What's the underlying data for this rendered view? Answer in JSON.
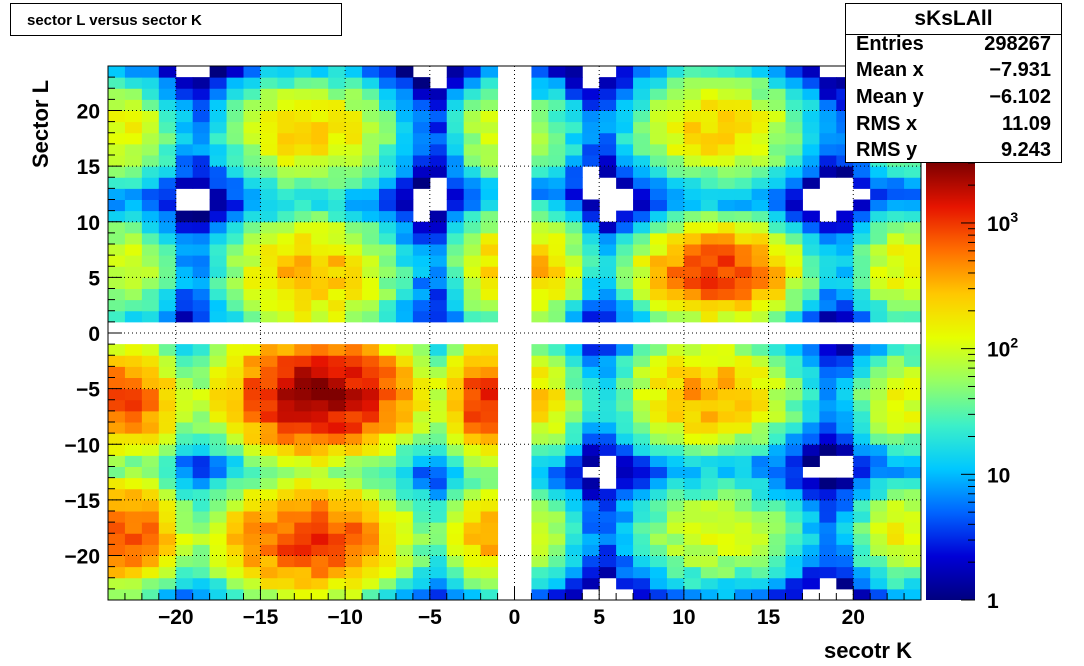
{
  "title": "sector L versus sector K",
  "stats": {
    "name": "sKsLAll",
    "rows": [
      {
        "label": "Entries",
        "value": "298267"
      },
      {
        "label": "Mean x",
        "value": "−7.931"
      },
      {
        "label": "Mean y",
        "value": "−6.102"
      },
      {
        "label": "RMS x",
        "value": "11.09"
      },
      {
        "label": "RMS y",
        "value": "9.243"
      }
    ]
  },
  "chart_data": {
    "type": "heatmap",
    "title": "sector L versus sector K",
    "xlabel": "secotr K",
    "ylabel": "Sector L",
    "xlim": [
      -24,
      24
    ],
    "ylim": [
      -24,
      24
    ],
    "grid": true,
    "bin_width": 1,
    "x_ticks": [
      {
        "value": -20,
        "label": "−20"
      },
      {
        "value": -15,
        "label": "−15"
      },
      {
        "value": -10,
        "label": "−10"
      },
      {
        "value": -5,
        "label": "−5"
      },
      {
        "value": 0,
        "label": "0"
      },
      {
        "value": 5,
        "label": "5"
      },
      {
        "value": 10,
        "label": "10"
      },
      {
        "value": 15,
        "label": "15"
      },
      {
        "value": 20,
        "label": "20"
      }
    ],
    "y_ticks": [
      {
        "value": 20,
        "label": "20"
      },
      {
        "value": 15,
        "label": "15"
      },
      {
        "value": 10,
        "label": "10"
      },
      {
        "value": 5,
        "label": "5"
      },
      {
        "value": 0,
        "label": "0"
      },
      {
        "value": -5,
        "label": "−5"
      },
      {
        "value": -10,
        "label": "−10"
      },
      {
        "value": -15,
        "label": "−15"
      },
      {
        "value": -20,
        "label": "−20"
      }
    ],
    "z_scale": "log",
    "zlim": [
      1,
      3000
    ],
    "z_ticks": [
      {
        "value": 1,
        "label": "1"
      },
      {
        "value": 10,
        "label": "10"
      },
      {
        "value": 100,
        "label": "10",
        "exp": "2"
      },
      {
        "value": 1000,
        "label": "10",
        "exp": "3"
      }
    ],
    "palette": [
      "#00007f",
      "#0000d6",
      "#0064ff",
      "#00c8ff",
      "#3cf0c8",
      "#96ff64",
      "#e6ff00",
      "#ffc800",
      "#ff6e00",
      "#e61400",
      "#7f0000"
    ],
    "clusters": [
      {
        "x": -12,
        "y": 18,
        "peak": 250,
        "sx": 2.4,
        "sy": 2.4
      },
      {
        "x": -12,
        "y": 5.5,
        "peak": 350,
        "sx": 2.4,
        "sy": 2.4
      },
      {
        "x": -11.5,
        "y": -5.5,
        "peak": 2500,
        "sx": 2.6,
        "sy": 2.4
      },
      {
        "x": -12,
        "y": -18.5,
        "peak": 1000,
        "sx": 2.7,
        "sy": 2.4
      },
      {
        "x": 12,
        "y": 18.5,
        "peak": 250,
        "sx": 2.4,
        "sy": 2.4
      },
      {
        "x": 12,
        "y": 5.5,
        "peak": 1000,
        "sx": 2.2,
        "sy": 2.0
      },
      {
        "x": 11.5,
        "y": -5.5,
        "peak": 400,
        "sx": 2.4,
        "sy": 2.4
      },
      {
        "x": 12,
        "y": -18,
        "peak": 120,
        "sx": 2.6,
        "sy": 2.4
      },
      {
        "x": -23,
        "y": 18,
        "peak": 150,
        "sx": 1.5,
        "sy": 2.3
      },
      {
        "x": -23,
        "y": 6,
        "peak": 120,
        "sx": 1.5,
        "sy": 2.3
      },
      {
        "x": -23,
        "y": -6,
        "peak": 800,
        "sx": 1.6,
        "sy": 2.3
      },
      {
        "x": -23,
        "y": -18,
        "peak": 800,
        "sx": 1.6,
        "sy": 2.3
      },
      {
        "x": -1.5,
        "y": 18,
        "peak": 100,
        "sx": 1.1,
        "sy": 2.3
      },
      {
        "x": -1.5,
        "y": 6,
        "peak": 200,
        "sx": 1.1,
        "sy": 2.3
      },
      {
        "x": -1.5,
        "y": -6,
        "peak": 1200,
        "sx": 1.2,
        "sy": 2.3
      },
      {
        "x": -1.5,
        "y": -18,
        "peak": 400,
        "sx": 1.2,
        "sy": 2.3
      },
      {
        "x": 1.5,
        "y": 18,
        "peak": 60,
        "sx": 1.3,
        "sy": 2.3
      },
      {
        "x": 1.5,
        "y": 6,
        "peak": 300,
        "sx": 1.3,
        "sy": 2.3
      },
      {
        "x": 1.5,
        "y": -6,
        "peak": 200,
        "sx": 1.3,
        "sy": 2.3
      },
      {
        "x": 1.5,
        "y": -18,
        "peak": 80,
        "sx": 1.3,
        "sy": 2.3
      },
      {
        "x": 23,
        "y": 18,
        "peak": 60,
        "sx": 1.5,
        "sy": 2.3
      },
      {
        "x": 23,
        "y": 6,
        "peak": 150,
        "sx": 1.5,
        "sy": 2.3
      },
      {
        "x": 23,
        "y": -6,
        "peak": 150,
        "sx": 1.5,
        "sy": 2.3
      },
      {
        "x": 23,
        "y": -18,
        "peak": 150,
        "sx": 1.5,
        "sy": 2.3
      }
    ]
  }
}
